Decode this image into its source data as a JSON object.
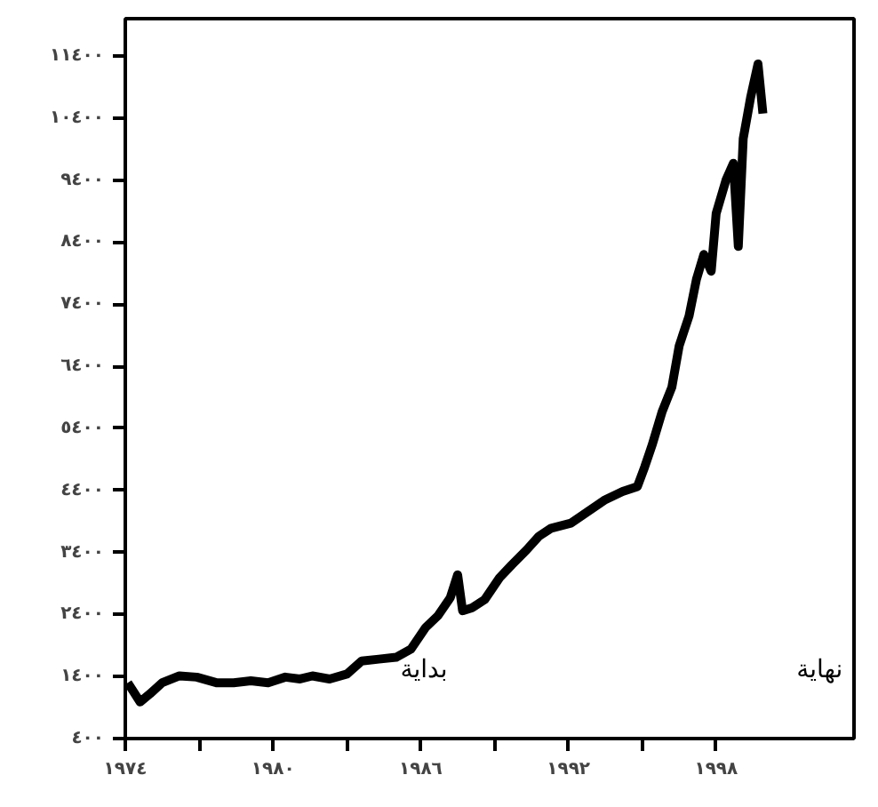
{
  "chart_data": {
    "type": "line",
    "x": [
      1974.1,
      1974.6,
      1975.0,
      1975.5,
      1976.2,
      1976.9,
      1977.7,
      1978.4,
      1979.1,
      1979.8,
      1980.5,
      1981.1,
      1981.6,
      1982.3,
      1983.0,
      1983.6,
      1984.3,
      1985.0,
      1985.6,
      1986.2,
      1986.7,
      1987.2,
      1987.5,
      1987.7,
      1988.1,
      1988.6,
      1989.2,
      1989.7,
      1990.3,
      1990.8,
      1991.3,
      1992.1,
      1992.8,
      1993.5,
      1994.2,
      1994.8,
      1995.1,
      1995.4,
      1995.8,
      1996.2,
      1996.5,
      1996.9,
      1997.2,
      1997.5,
      1997.8,
      1998.0,
      1998.4,
      1998.7,
      1998.9,
      1999.1,
      1999.4,
      1999.7,
      1999.9
    ],
    "series": [
      {
        "color": "#000000",
        "values": [
          1300,
          990,
          1120,
          1300,
          1410,
          1390,
          1300,
          1300,
          1330,
          1300,
          1390,
          1360,
          1410,
          1360,
          1440,
          1650,
          1680,
          1710,
          1840,
          2190,
          2380,
          2670,
          3040,
          2460,
          2510,
          2640,
          2990,
          3200,
          3440,
          3660,
          3790,
          3870,
          4060,
          4250,
          4380,
          4460,
          4780,
          5130,
          5660,
          6060,
          6730,
          7210,
          7800,
          8200,
          7930,
          8860,
          9400,
          9670,
          8330,
          10070,
          10730,
          11270,
          10470
        ]
      }
    ],
    "xlim": [
      1974,
      2003.6
    ],
    "ylim": [
      400,
      12000
    ],
    "xticks": [
      {
        "value": 1974,
        "label": "١٩٧٤"
      },
      {
        "value": 1977,
        "label": null
      },
      {
        "value": 1980,
        "label": "١٩٨٠"
      },
      {
        "value": 1983,
        "label": null
      },
      {
        "value": 1986,
        "label": "١٩٨٦"
      },
      {
        "value": 1989,
        "label": null
      },
      {
        "value": 1992,
        "label": "١٩٩٢"
      },
      {
        "value": 1995,
        "label": null
      },
      {
        "value": 1998,
        "label": "١٩٩٨"
      }
    ],
    "yticks": [
      {
        "value": 400,
        "label": "٤٠٠"
      },
      {
        "value": 1400,
        "label": "١٤٠٠"
      },
      {
        "value": 2400,
        "label": "٢٤٠٠"
      },
      {
        "value": 3400,
        "label": "٣٤٠٠"
      },
      {
        "value": 4400,
        "label": "٤٤٠٠"
      },
      {
        "value": 5400,
        "label": "٥٤٠٠"
      },
      {
        "value": 6400,
        "label": "٦٤٠٠"
      },
      {
        "value": 7400,
        "label": "٧٤٠٠"
      },
      {
        "value": 8400,
        "label": "٨٤٠٠"
      },
      {
        "value": 9400,
        "label": "٩٤٠٠"
      },
      {
        "value": 10400,
        "label": "١٠٤٠٠"
      },
      {
        "value": 11400,
        "label": "١١٤٠٠"
      }
    ],
    "annotations": [
      "بداية",
      "نهاية"
    ],
    "grid": false,
    "line_style": "solid"
  }
}
